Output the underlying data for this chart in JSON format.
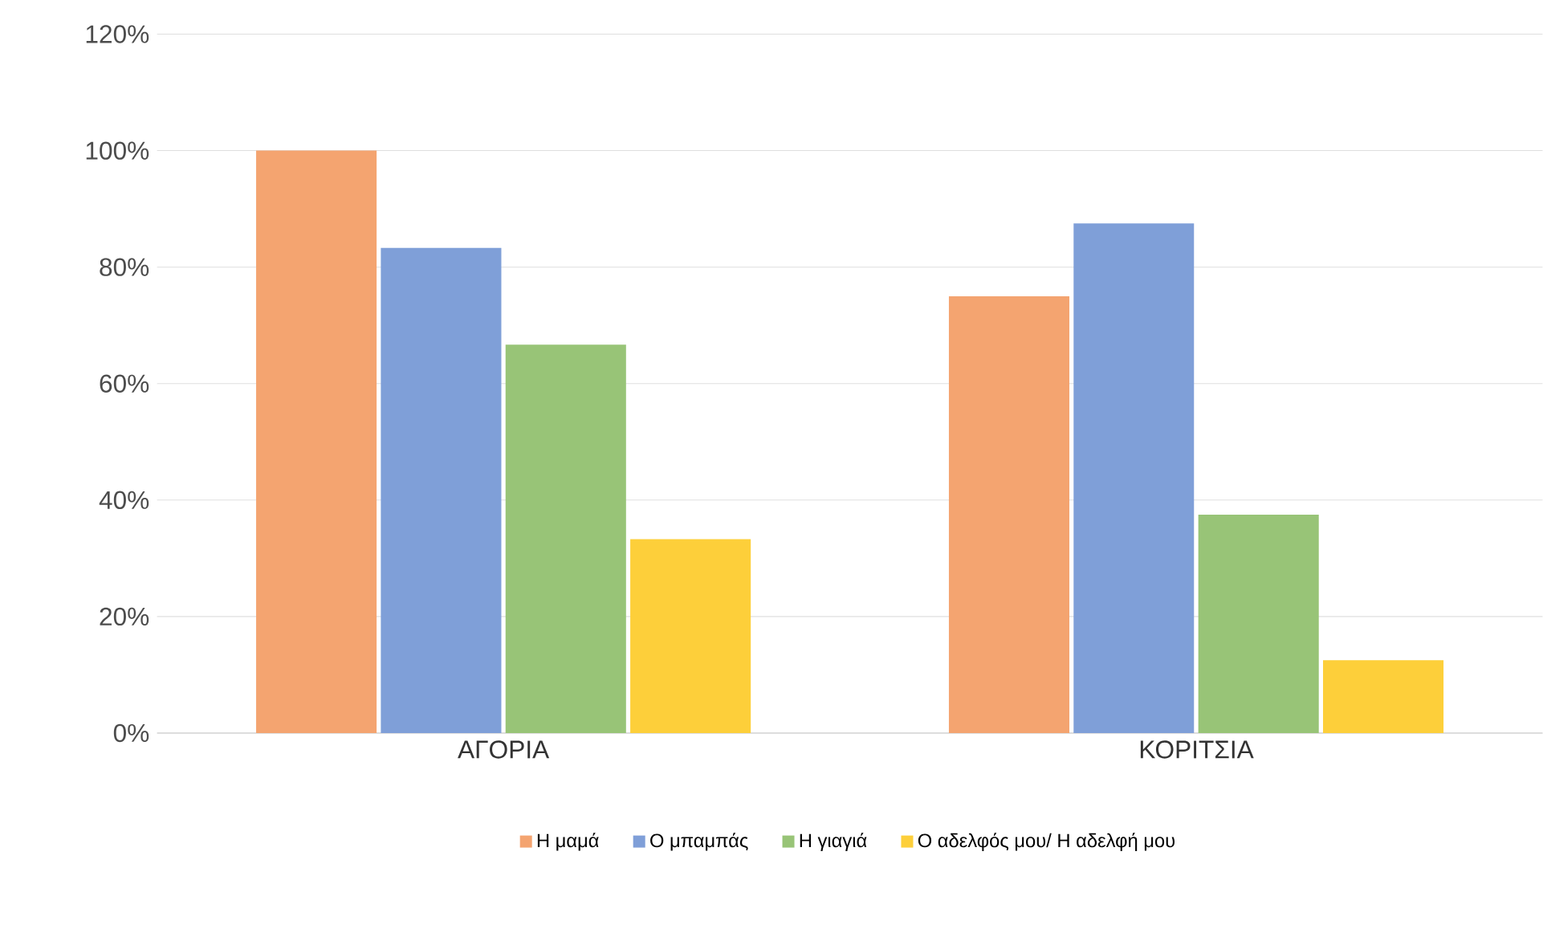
{
  "chart_data": {
    "type": "bar",
    "categories": [
      "ΑΓΟΡΙΑ",
      "ΚΟΡΙΤΣΙΑ"
    ],
    "series": [
      {
        "name": "Η μαμά",
        "color": "#f4a470",
        "values": [
          100,
          75
        ]
      },
      {
        "name": "Ο μπαμπάς",
        "color": "#7f9fd8",
        "values": [
          83.3,
          87.5
        ]
      },
      {
        "name": "Η γιαγιά",
        "color": "#98c477",
        "values": [
          66.7,
          37.5
        ]
      },
      {
        "name": "Ο αδελφός μου/ Η αδελφή μου",
        "color": "#fdcf3a",
        "values": [
          33.3,
          12.5
        ]
      }
    ],
    "ylim": [
      0,
      120
    ],
    "yticks": [
      {
        "value": 0,
        "label": "0%"
      },
      {
        "value": 20,
        "label": "20%"
      },
      {
        "value": 40,
        "label": "40%"
      },
      {
        "value": 60,
        "label": "60%"
      },
      {
        "value": 80,
        "label": "80%"
      },
      {
        "value": 100,
        "label": "100%"
      },
      {
        "value": 120,
        "label": "120%"
      }
    ],
    "grid": "y",
    "legend": "bottom"
  }
}
